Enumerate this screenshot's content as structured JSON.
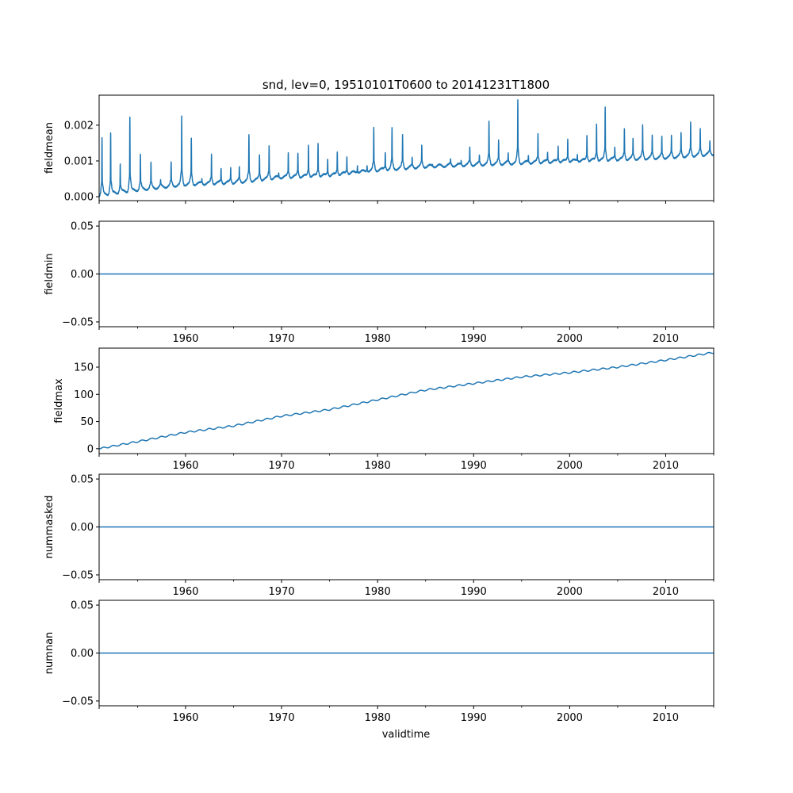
{
  "chart_data": {
    "type": "line",
    "title": "snd, lev=0, 19510101T0600 to 20141231T1800",
    "xlabel": "validtime",
    "xlim": [
      1951.0,
      2015.0
    ],
    "xticks": [
      1960,
      1970,
      1980,
      1990,
      2000,
      2010
    ],
    "xtick_labels": [
      "1960",
      "1970",
      "1980",
      "1990",
      "2000",
      "2010"
    ],
    "minor_xticks": [
      1955,
      1965,
      1975,
      1985,
      1995,
      2005,
      2015
    ],
    "line_color": "#1f77b4",
    "grid": false,
    "subplots": [
      {
        "name": "fieldmean",
        "ylabel": "fieldmean",
        "ylim": [
          -0.00011,
          0.00284
        ],
        "yticks": [
          0.0,
          0.001,
          0.002
        ],
        "ytick_labels": [
          "0.000",
          "0.001",
          "0.002"
        ],
        "show_xtick_labels": false,
        "series": {
          "kind": "seasonal-peaks",
          "baseline": {
            "x": [
              1951,
              1955,
              1960,
              1965,
              1970,
              1975,
              1980,
              1985,
              1990,
              1995,
              2000,
              2005,
              2010,
              2015
            ],
            "y": [
              5e-05,
              0.0002,
              0.00035,
              0.0004,
              0.00055,
              0.0006,
              0.00075,
              0.00085,
              0.0009,
              0.00095,
              0.001,
              0.00105,
              0.0011,
              0.0012
            ]
          },
          "peaks": {
            "x": [
              1951.3,
              1952.2,
              1953.2,
              1954.2,
              1955.3,
              1956.4,
              1957.4,
              1958.5,
              1959.6,
              1960.6,
              1961.7,
              1962.7,
              1963.7,
              1964.7,
              1965.6,
              1966.6,
              1967.7,
              1968.7,
              1969.7,
              1970.7,
              1971.7,
              1972.8,
              1973.8,
              1974.8,
              1975.8,
              1976.8,
              1977.9,
              1978.9,
              1979.6,
              1980.8,
              1981.5,
              1982.6,
              1983.6,
              1984.6,
              1985.7,
              1986.6,
              1987.6,
              1988.7,
              1989.6,
              1990.6,
              1991.6,
              1992.6,
              1993.6,
              1994.6,
              1995.7,
              1996.7,
              1997.7,
              1998.8,
              1999.8,
              2000.8,
              2001.8,
              2002.8,
              2003.7,
              2004.7,
              2005.7,
              2006.6,
              2007.6,
              2008.6,
              2009.6,
              2010.6,
              2011.6,
              2012.6,
              2013.6,
              2014.6
            ],
            "y": [
              0.00162,
              0.00178,
              0.00093,
              0.00222,
              0.00115,
              0.00093,
              0.00045,
              0.00093,
              0.00222,
              0.00162,
              0.00052,
              0.00118,
              0.00078,
              0.00083,
              0.00081,
              0.0017,
              0.00118,
              0.00143,
              0.00065,
              0.00123,
              0.00123,
              0.00146,
              0.0015,
              0.00108,
              0.00128,
              0.00112,
              0.0009,
              0.00092,
              0.0019,
              0.00125,
              0.0019,
              0.0017,
              0.00108,
              0.00143,
              0.0009,
              0.00085,
              0.00105,
              0.00102,
              0.00135,
              0.00115,
              0.0021,
              0.00155,
              0.0012,
              0.0027,
              0.00115,
              0.00175,
              0.00125,
              0.00145,
              0.00162,
              0.0012,
              0.00175,
              0.00205,
              0.0025,
              0.0014,
              0.0019,
              0.0016,
              0.002,
              0.0017,
              0.00165,
              0.0017,
              0.00178,
              0.00205,
              0.00188,
              0.00155
            ]
          }
        }
      },
      {
        "name": "fieldmin",
        "ylabel": "fieldmin",
        "ylim": [
          -0.055,
          0.055
        ],
        "yticks": [
          -0.05,
          0.0,
          0.05
        ],
        "ytick_labels": [
          "−0.05",
          "0.00",
          "0.05"
        ],
        "show_xtick_labels": true,
        "series": {
          "kind": "constant",
          "x": [
            1951.0,
            2015.0
          ],
          "y": [
            0.0,
            0.0
          ]
        }
      },
      {
        "name": "fieldmax",
        "ylabel": "fieldmax",
        "ylim": [
          -9,
          185
        ],
        "yticks": [
          0,
          50,
          100,
          150
        ],
        "ytick_labels": [
          "0",
          "50",
          "100",
          "150"
        ],
        "show_xtick_labels": true,
        "series": {
          "kind": "trend-wiggle",
          "x": [
            1951,
            1955,
            1960,
            1965,
            1970,
            1975,
            1980,
            1985,
            1990,
            1995,
            2000,
            2005,
            2010,
            2015
          ],
          "y": [
            0,
            13,
            30,
            42,
            60,
            72,
            90,
            108,
            120,
            132,
            140,
            150,
            163,
            177
          ]
        }
      },
      {
        "name": "nummasked",
        "ylabel": "nummasked",
        "ylim": [
          -0.055,
          0.055
        ],
        "yticks": [
          -0.05,
          0.0,
          0.05
        ],
        "ytick_labels": [
          "−0.05",
          "0.00",
          "0.05"
        ],
        "show_xtick_labels": true,
        "series": {
          "kind": "constant",
          "x": [
            1951.0,
            2015.0
          ],
          "y": [
            0.0,
            0.0
          ]
        }
      },
      {
        "name": "numnan",
        "ylabel": "numnan",
        "ylim": [
          -0.055,
          0.055
        ],
        "yticks": [
          -0.05,
          0.0,
          0.05
        ],
        "ytick_labels": [
          "−0.05",
          "0.00",
          "0.05"
        ],
        "show_xtick_labels": true,
        "series": {
          "kind": "constant",
          "x": [
            1951.0,
            2015.0
          ],
          "y": [
            0.0,
            0.0
          ]
        }
      }
    ]
  }
}
